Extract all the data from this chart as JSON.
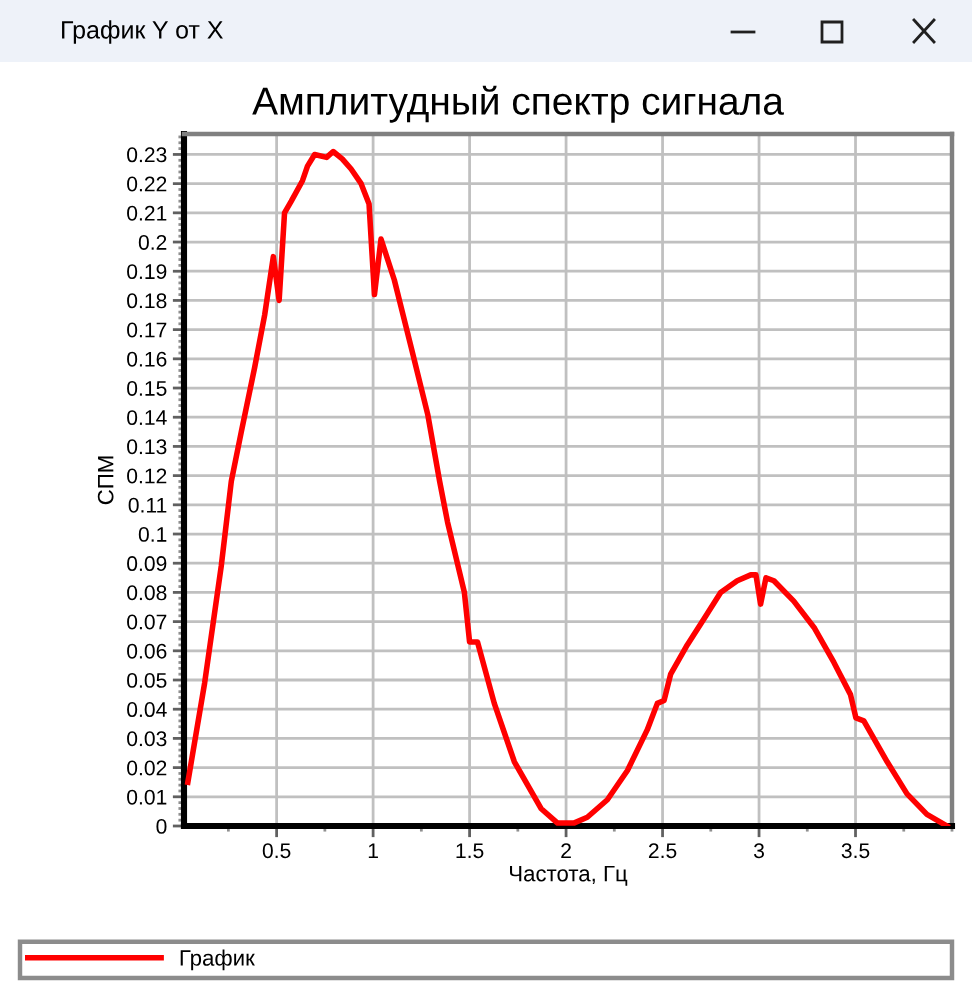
{
  "chart_data": {
    "type": "line",
    "title": "Амплитудный спектр сигнала",
    "xlabel": "Частота, Гц",
    "ylabel": "СПМ",
    "annotations": [
      "График Y от X"
    ],
    "x": [
      0.04,
      0.127,
      0.213,
      0.265,
      0.317,
      0.386,
      0.438,
      0.483,
      0.513,
      0.541,
      0.576,
      0.634,
      0.66,
      0.697,
      0.759,
      0.793,
      0.84,
      0.886,
      0.938,
      0.979,
      1.007,
      1.041,
      1.11,
      1.197,
      1.283,
      1.345,
      1.386,
      1.473,
      1.5,
      1.541,
      1.628,
      1.732,
      1.87,
      1.956,
      2.04,
      2.11,
      2.214,
      2.318,
      2.421,
      2.473,
      2.508,
      2.542,
      2.628,
      2.715,
      2.801,
      2.887,
      2.957,
      2.984,
      3.008,
      3.036,
      3.077,
      3.18,
      3.285,
      3.388,
      3.474,
      3.502,
      3.543,
      3.664,
      3.767,
      3.87,
      3.974
    ],
    "series": [
      {
        "name": "График",
        "color": "#ff0000",
        "values": [
          0.015,
          0.049,
          0.089,
          0.118,
          0.135,
          0.157,
          0.175,
          0.195,
          0.18,
          0.21,
          0.214,
          0.221,
          0.226,
          0.23,
          0.229,
          0.231,
          0.2285,
          0.225,
          0.22,
          0.213,
          0.182,
          0.201,
          0.187,
          0.164,
          0.141,
          0.118,
          0.104,
          0.08,
          0.063,
          0.063,
          0.042,
          0.022,
          0.006,
          0.001,
          0.001,
          0.003,
          0.009,
          0.019,
          0.033,
          0.042,
          0.043,
          0.052,
          0.062,
          0.071,
          0.08,
          0.084,
          0.086,
          0.086,
          0.076,
          0.085,
          0.084,
          0.077,
          0.068,
          0.056,
          0.045,
          0.037,
          0.036,
          0.022,
          0.011,
          0.004,
          0.0
        ]
      }
    ],
    "xlim": [
      0.02,
      4.0
    ],
    "ylim": [
      0,
      0.237
    ],
    "xticks": [
      0.5,
      1,
      1.5,
      2,
      2.5,
      3,
      3.5
    ],
    "yticks": [
      0,
      0.01,
      0.02,
      0.03,
      0.04,
      0.05,
      0.06,
      0.07,
      0.08,
      0.09,
      0.1,
      0.11,
      0.12,
      0.13,
      0.14,
      0.15,
      0.16,
      0.17,
      0.18,
      0.19,
      0.2,
      0.21,
      0.22,
      0.23
    ],
    "grid": true,
    "legend": "bottom",
    "line_style": "solid"
  }
}
